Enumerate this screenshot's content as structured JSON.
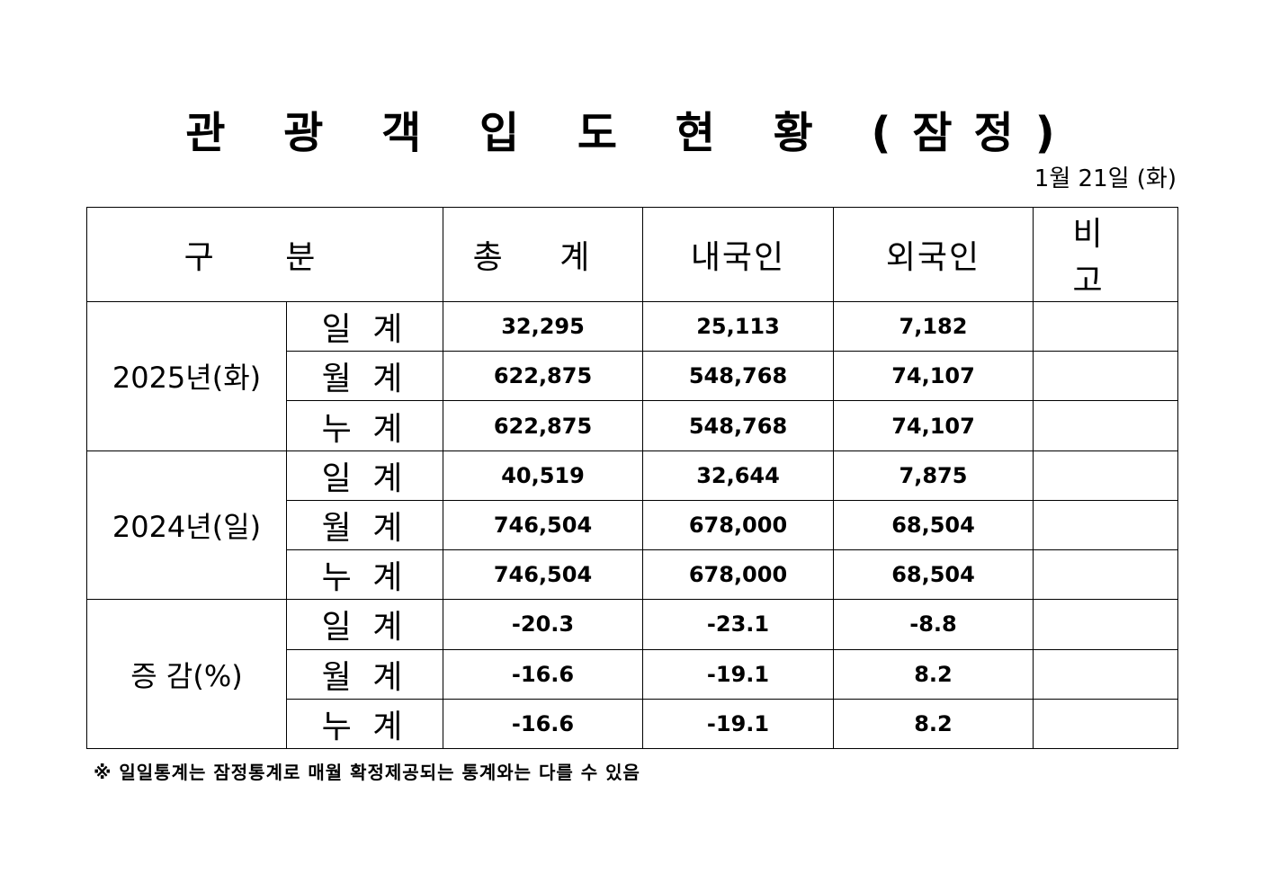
{
  "title": "관 광 객 입 도 현 황 (잠정)",
  "date": "1월 21일 (화)",
  "headers": {
    "category": "구 분",
    "total": "총 계",
    "domestic": "내국인",
    "foreign": "외국인",
    "remarks": "비 고"
  },
  "groups": [
    {
      "label": "2025년(화)",
      "rows": [
        {
          "label": "일 계",
          "total": "32,295",
          "domestic": "25,113",
          "foreign": "7,182",
          "remarks": ""
        },
        {
          "label": "월 계",
          "total": "622,875",
          "domestic": "548,768",
          "foreign": "74,107",
          "remarks": ""
        },
        {
          "label": "누 계",
          "total": "622,875",
          "domestic": "548,768",
          "foreign": "74,107",
          "remarks": ""
        }
      ]
    },
    {
      "label": "2024년(일)",
      "rows": [
        {
          "label": "일 계",
          "total": "40,519",
          "domestic": "32,644",
          "foreign": "7,875",
          "remarks": ""
        },
        {
          "label": "월 계",
          "total": "746,504",
          "domestic": "678,000",
          "foreign": "68,504",
          "remarks": ""
        },
        {
          "label": "누 계",
          "total": "746,504",
          "domestic": "678,000",
          "foreign": "68,504",
          "remarks": ""
        }
      ]
    },
    {
      "label": "증 감(%)",
      "rows": [
        {
          "label": "일 계",
          "total": "-20.3",
          "domestic": "-23.1",
          "foreign": "-8.8",
          "remarks": ""
        },
        {
          "label": "월 계",
          "total": "-16.6",
          "domestic": "-19.1",
          "foreign": "8.2",
          "remarks": ""
        },
        {
          "label": "누 계",
          "total": "-16.6",
          "domestic": "-19.1",
          "foreign": "8.2",
          "remarks": ""
        }
      ]
    }
  ],
  "footnote": "※ 일일통계는 잠정통계로 매월 확정제공되는 통계와는 다를 수 있음"
}
